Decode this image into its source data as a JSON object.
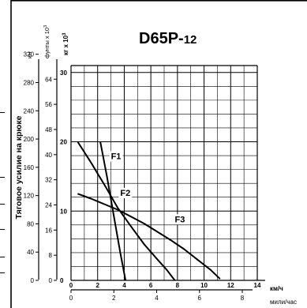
{
  "chart_data": {
    "type": "line",
    "title": "D65P-",
    "title_suffix": "12",
    "ylabel": "Тяговое усилие на крюке",
    "y_unit_kn": "кН",
    "y_unit_lb": "фунты x 10",
    "y_unit_lb_exp": "3",
    "y_unit_kg": "кг x 10",
    "y_unit_kg_exp": "3",
    "x_unit_kmh": "км/ч",
    "x_unit_mph": "мили/час",
    "x_ticks_kmh": [
      "0",
      "2",
      "4",
      "6",
      "8",
      "10",
      "12",
      "14"
    ],
    "x_ticks_mph": [
      "0",
      "2",
      "4",
      "6",
      "8"
    ],
    "y_ticks_kg": [
      "0",
      "10",
      "20",
      "30"
    ],
    "y_ticks_lb": [
      "0",
      "8",
      "16",
      "24",
      "32",
      "40",
      "48",
      "56",
      "64"
    ],
    "y_ticks_kn": [
      "0",
      "40",
      "80",
      "120",
      "160",
      "200",
      "240",
      "280",
      "320"
    ],
    "xlim": [
      0,
      14
    ],
    "ylim": [
      0,
      31
    ],
    "series": [
      {
        "name": "F1",
        "points": [
          [
            2.2,
            20.0
          ],
          [
            2.7,
            15.0
          ],
          [
            3.2,
            9.5
          ],
          [
            3.7,
            4.0
          ],
          [
            4.1,
            0.0
          ]
        ]
      },
      {
        "name": "F2",
        "points": [
          [
            0.5,
            20.0
          ],
          [
            1.5,
            17.0
          ],
          [
            2.6,
            13.5
          ],
          [
            3.5,
            10.5
          ],
          [
            4.5,
            7.8
          ],
          [
            5.5,
            5.2
          ],
          [
            6.5,
            3.0
          ],
          [
            7.2,
            1.5
          ],
          [
            7.8,
            0.0
          ]
        ]
      },
      {
        "name": "F3",
        "points": [
          [
            0.5,
            12.5
          ],
          [
            1.5,
            11.8
          ],
          [
            2.5,
            11.0
          ],
          [
            3.5,
            10.2
          ],
          [
            4.5,
            9.2
          ],
          [
            5.5,
            8.2
          ],
          [
            6.5,
            7.0
          ],
          [
            7.5,
            5.8
          ],
          [
            8.5,
            4.5
          ],
          [
            9.5,
            3.0
          ],
          [
            10.5,
            1.5
          ],
          [
            11.2,
            0.2
          ]
        ]
      }
    ]
  }
}
